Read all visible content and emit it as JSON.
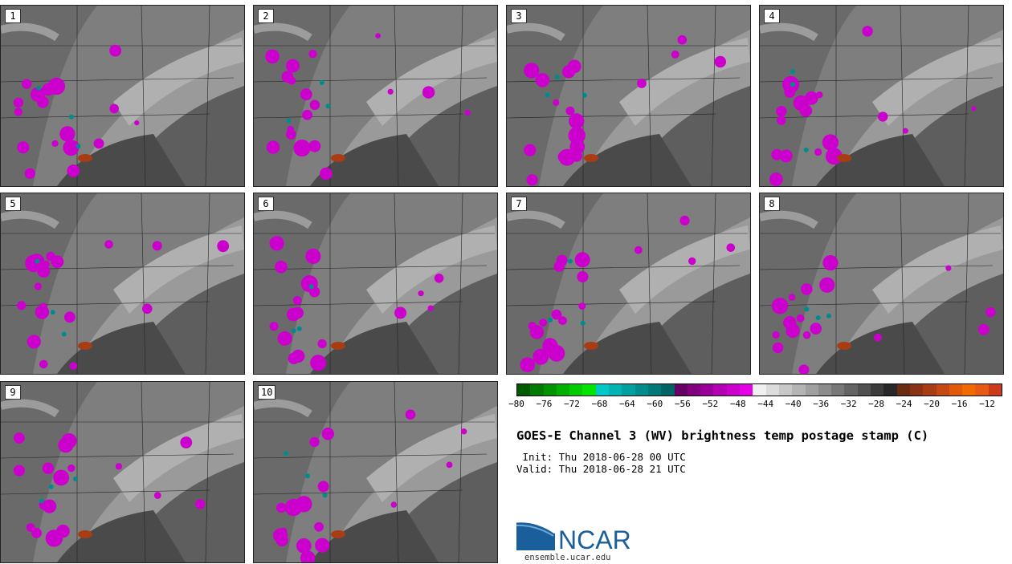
{
  "panels": [
    "1",
    "2",
    "3",
    "4",
    "5",
    "6",
    "7",
    "8",
    "9",
    "10"
  ],
  "colorbar": {
    "colors": [
      "#005a00",
      "#007a00",
      "#009400",
      "#00b000",
      "#00cc00",
      "#00e400",
      "#00c8c8",
      "#00b4b4",
      "#00a0a0",
      "#008c8c",
      "#007878",
      "#006464",
      "#660066",
      "#800080",
      "#990099",
      "#b300b3",
      "#cc00cc",
      "#e600e6",
      "#f0f0f0",
      "#dcdcdc",
      "#c8c8c8",
      "#b4b4b4",
      "#a0a0a0",
      "#8c8c8c",
      "#787878",
      "#646464",
      "#505050",
      "#3c3c3c",
      "#282828",
      "#6b2a12",
      "#8a3314",
      "#a83d14",
      "#c44a12",
      "#e05a0a",
      "#f06a00",
      "#e85a14",
      "#cc3a1a"
    ],
    "tick_labels": [
      "−80",
      "−76",
      "−72",
      "−68",
      "−64",
      "−60",
      "−56",
      "−52",
      "−48",
      "−44",
      "−40",
      "−36",
      "−32",
      "−28",
      "−24",
      "−20",
      "−16",
      "−12"
    ]
  },
  "title": "GOES-E Channel 3 (WV) brightness temp postage stamp (C)",
  "init_line": " Init: Thu 2018-06-28 00 UTC",
  "valid_line": "Valid: Thu 2018-06-28 21 UTC",
  "logo_text": "NCAR",
  "website": "ensemble.ucar.edu",
  "colors": {
    "magenta": "#cc00cc",
    "teal": "#008c8c",
    "rust": "#a83d14"
  }
}
